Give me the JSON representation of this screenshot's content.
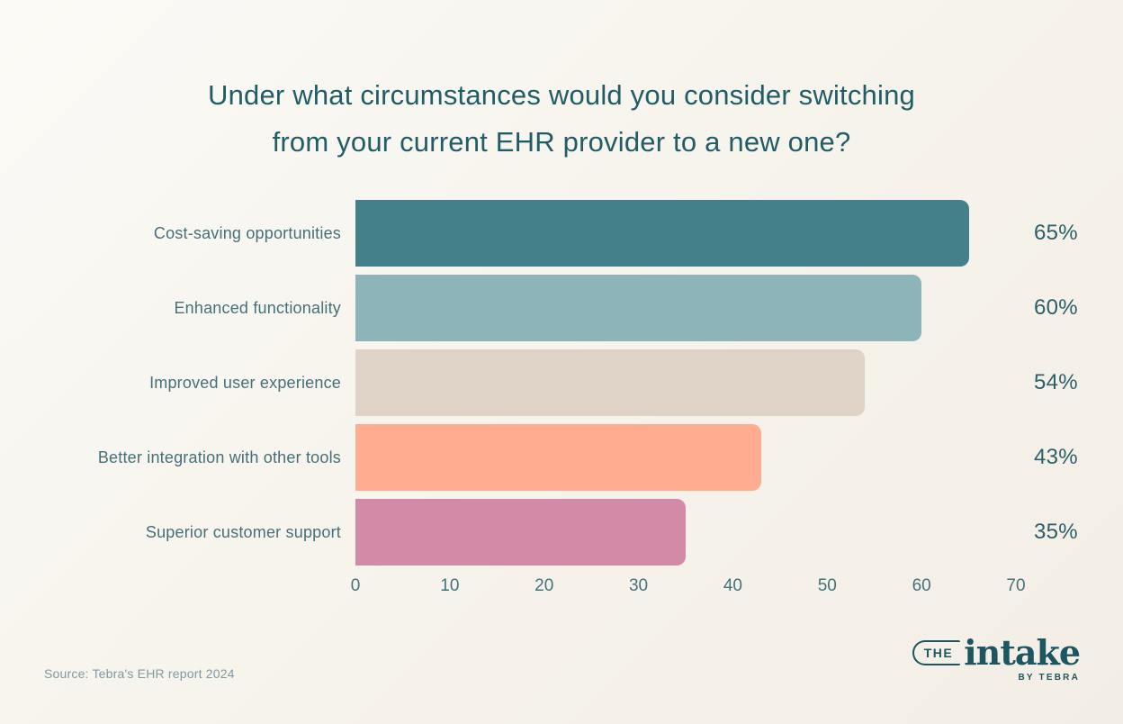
{
  "title": {
    "line1": "Under what circumstances would you consider switching",
    "line2": "from your current EHR provider to a new one?"
  },
  "chart_data": {
    "type": "bar",
    "orientation": "horizontal",
    "title": "Under what circumstances would you consider switching from your current EHR provider to a new one?",
    "categories": [
      "Cost-saving opportunities",
      "Enhanced functionality",
      "Improved user experience",
      "Better integration with other tools",
      "Superior customer support"
    ],
    "values": [
      65,
      60,
      54,
      43,
      35
    ],
    "value_labels": [
      "65%",
      "60%",
      "54%",
      "43%",
      "35%"
    ],
    "bar_colors": [
      "#44808a",
      "#8db4b8",
      "#ded3c6",
      "#ffac90",
      "#d28aa7"
    ],
    "xlabel": "",
    "ylabel": "",
    "xlim": [
      0,
      70
    ],
    "x_ticks": [
      "0",
      "10",
      "20",
      "30",
      "40",
      "50",
      "60",
      "70"
    ],
    "grid": false,
    "legend": "none"
  },
  "source": "Source: Tebra's EHR report 2024",
  "logo": {
    "the": "THE",
    "name": "intake",
    "byline": "BY TEBRA"
  },
  "colors": {
    "background_start": "#fbfaf6",
    "background_end": "#f3eee5",
    "title_text": "#215d67",
    "category_text": "#45707a",
    "value_text": "#2b5f6a",
    "tick_text": "#42737d",
    "source_text": "#7f9aa3",
    "logo_text": "#1c5761"
  }
}
